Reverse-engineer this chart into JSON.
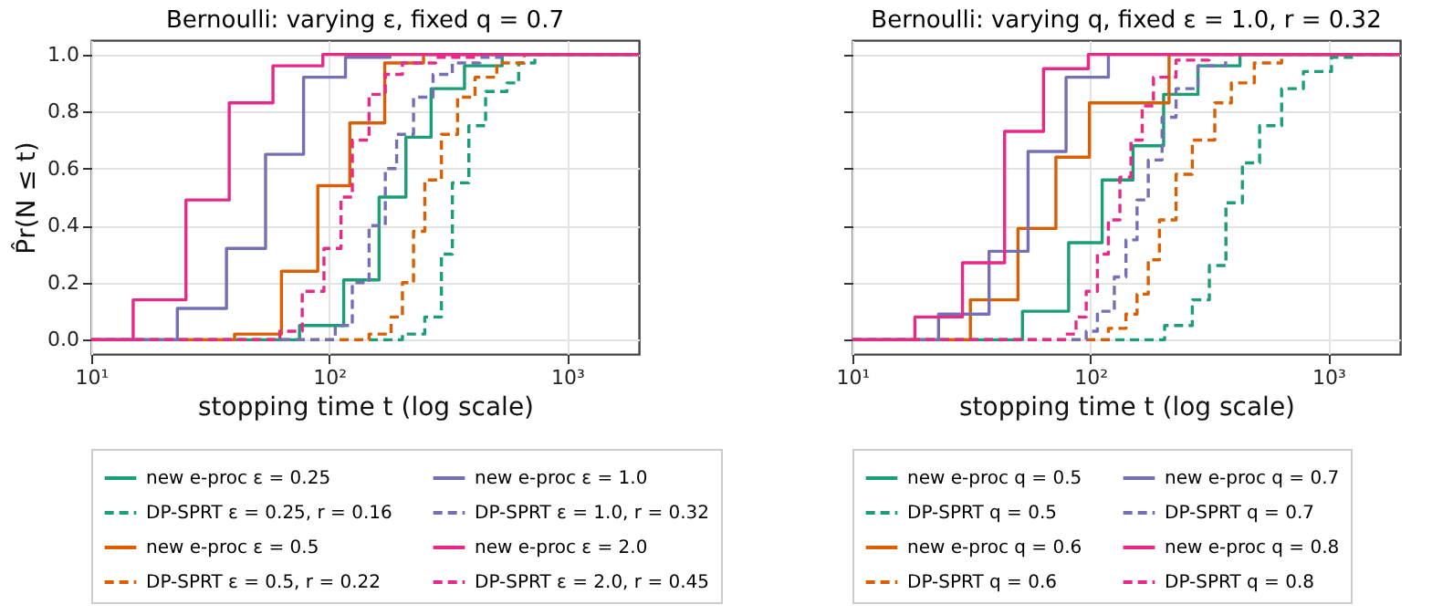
{
  "chart_data": [
    {
      "type": "step",
      "title": "Bernoulli: varying ε, fixed q = 0.7",
      "xlabel": "stopping time t (log scale)",
      "ylabel": "P̂r(N ≤ t)",
      "log": "x",
      "grid": true,
      "legend": "bottom",
      "xlim": [
        10,
        2000
      ],
      "ylim": [
        -0.05,
        1.05
      ],
      "xticks": [
        {
          "value": 10,
          "label": "10¹"
        },
        {
          "value": 100,
          "label": "10²"
        },
        {
          "value": 1000,
          "label": "10³"
        }
      ],
      "yticks": [
        {
          "value": 0,
          "label": "0.0"
        },
        {
          "value": 0.2,
          "label": "0.2"
        },
        {
          "value": 0.4,
          "label": "0.4"
        },
        {
          "value": 0.6,
          "label": "0.6"
        },
        {
          "value": 0.8,
          "label": "0.8"
        },
        {
          "value": 1,
          "label": "1.0"
        }
      ],
      "series": [
        {
          "name": "new e-proc ε = 0.25",
          "color": "#1b9e77",
          "line_style": "solid",
          "x": [
            10,
            75,
            115,
            162,
            210,
            268,
            370,
            533,
            2000
          ],
          "values": [
            0,
            0.05,
            0.21,
            0.5,
            0.71,
            0.88,
            0.96,
            1.0,
            1.0
          ]
        },
        {
          "name": "DP-SPRT ε = 0.25, r = 0.16",
          "color": "#1b9e77",
          "line_style": "dashed",
          "x": [
            10,
            160,
            203,
            252,
            296,
            329,
            386,
            454,
            558,
            625,
            731,
            2000
          ],
          "values": [
            0,
            0,
            0.02,
            0.08,
            0.3,
            0.55,
            0.75,
            0.87,
            0.9,
            0.97,
            1.0,
            1.0
          ]
        },
        {
          "name": "new e-proc ε = 0.5",
          "color": "#d95f02",
          "line_style": "solid",
          "x": [
            10,
            40,
            63,
            89.5,
            122,
            171,
            249,
            2000
          ],
          "values": [
            0,
            0.02,
            0.24,
            0.54,
            0.76,
            0.97,
            1.0,
            1.0
          ]
        },
        {
          "name": "DP-SPRT ε = 0.5, r = 0.22",
          "color": "#d95f02",
          "line_style": "dashed",
          "x": [
            10,
            119,
            147,
            182,
            203,
            226,
            252,
            296,
            346,
            410,
            506,
            660,
            2000
          ],
          "values": [
            0,
            0,
            0.02,
            0.08,
            0.2,
            0.38,
            0.56,
            0.72,
            0.85,
            0.92,
            0.97,
            1.0,
            1.0
          ]
        },
        {
          "name": "new e-proc ε = 1.0",
          "color": "#7570b3",
          "line_style": "solid",
          "x": [
            10,
            23,
            37,
            54,
            78,
            117,
            180,
            2000
          ],
          "values": [
            0,
            0.11,
            0.32,
            0.65,
            0.92,
            0.99,
            1.0,
            1.0
          ]
        },
        {
          "name": "DP-SPRT ε = 1.0, r = 0.32",
          "color": "#7570b3",
          "line_style": "dashed",
          "x": [
            10,
            86,
            106,
            125,
            147,
            172,
            192,
            226,
            273,
            329,
            430,
            533,
            2000
          ],
          "values": [
            0,
            0,
            0.05,
            0.2,
            0.4,
            0.6,
            0.72,
            0.85,
            0.93,
            0.97,
            0.99,
            1.0,
            1.0
          ]
        },
        {
          "name": "new e-proc ε = 2.0",
          "color": "#e7298a",
          "line_style": "solid",
          "x": [
            10,
            15,
            25,
            38,
            58,
            94,
            2000
          ],
          "values": [
            0,
            0.14,
            0.49,
            0.83,
            0.96,
            1.0,
            1.0
          ]
        },
        {
          "name": "DP-SPRT ε = 2.0, r = 0.45",
          "color": "#e7298a",
          "line_style": "dashed",
          "x": [
            10,
            53,
            62,
            77,
            95,
            112,
            125,
            147,
            172,
            203,
            280,
            410,
            2000
          ],
          "values": [
            0,
            0,
            0.03,
            0.17,
            0.32,
            0.5,
            0.7,
            0.86,
            0.93,
            0.97,
            0.99,
            1.0,
            1.0
          ]
        }
      ]
    },
    {
      "type": "step",
      "title": "Bernoulli: varying q, fixed ε = 1.0, r = 0.32",
      "xlabel": "stopping time t (log scale)",
      "log": "x",
      "grid": true,
      "legend": "bottom",
      "tick_labels": "x",
      "xlim": [
        10,
        2000
      ],
      "ylim": [
        -0.05,
        1.05
      ],
      "xticks": [
        {
          "value": 10,
          "label": "10¹"
        },
        {
          "value": 100,
          "label": "10²"
        },
        {
          "value": 1000,
          "label": "10³"
        }
      ],
      "yticks": [
        0,
        0.2,
        0.4,
        0.6,
        0.8,
        1
      ],
      "series": [
        {
          "name": "new e-proc q = 0.5",
          "color": "#1b9e77",
          "line_style": "solid",
          "x": [
            10,
            51.8,
            81,
            112,
            151,
            203,
            283,
            425,
            2000
          ],
          "values": [
            0,
            0.1,
            0.34,
            0.56,
            0.68,
            0.86,
            0.96,
            1.0,
            1.0
          ]
        },
        {
          "name": "DP-SPRT q = 0.5",
          "color": "#1b9e77",
          "line_style": "dashed",
          "x": [
            10,
            165,
            205,
            268,
            316,
            371,
            435,
            514,
            636,
            785,
            1030,
            1270,
            2000
          ],
          "values": [
            0,
            0,
            0.05,
            0.14,
            0.26,
            0.48,
            0.62,
            0.75,
            0.88,
            0.94,
            0.99,
            1.0,
            1.0
          ]
        },
        {
          "name": "new e-proc q = 0.6",
          "color": "#d95f02",
          "line_style": "solid",
          "x": [
            10,
            31.3,
            49.6,
            71.6,
            99,
            214,
            2000
          ],
          "values": [
            0,
            0.14,
            0.39,
            0.64,
            0.83,
            1.0,
            1.0
          ]
        },
        {
          "name": "DP-SPRT q = 0.6",
          "color": "#d95f02",
          "line_style": "dashed",
          "x": [
            10,
            107,
            119,
            141,
            157,
            175,
            195,
            229,
            268,
            333,
            391,
            488,
            636,
            2000
          ],
          "values": [
            0,
            0,
            0.04,
            0.09,
            0.16,
            0.28,
            0.42,
            0.58,
            0.7,
            0.83,
            0.9,
            0.97,
            1.0,
            1.0
          ]
        },
        {
          "name": "new e-proc q = 0.7",
          "color": "#7570b3",
          "line_style": "solid",
          "x": [
            10,
            23,
            37.5,
            54.7,
            79,
            119,
            2000
          ],
          "values": [
            0,
            0.09,
            0.31,
            0.66,
            0.92,
            1.0,
            1.0
          ]
        },
        {
          "name": "DP-SPRT q = 0.7",
          "color": "#7570b3",
          "line_style": "dashed",
          "x": [
            10,
            87,
            96,
            107,
            126,
            141,
            157,
            175,
            200,
            229,
            283,
            370,
            2000
          ],
          "values": [
            0,
            0,
            0.03,
            0.1,
            0.22,
            0.35,
            0.49,
            0.63,
            0.78,
            0.88,
            0.96,
            1.0,
            1.0
          ]
        },
        {
          "name": "new e-proc q = 0.8",
          "color": "#e7298a",
          "line_style": "solid",
          "x": [
            10,
            18.3,
            29,
            43.6,
            63.5,
            98,
            2000
          ],
          "values": [
            0,
            0.08,
            0.27,
            0.73,
            0.95,
            1.0,
            1.0
          ]
        },
        {
          "name": "DP-SPRT q = 0.8",
          "color": "#e7298a",
          "line_style": "dashed",
          "x": [
            10,
            70,
            78,
            87,
            96,
            107,
            119,
            133,
            148,
            165,
            184,
            229,
            315,
            2000
          ],
          "values": [
            0,
            0,
            0.02,
            0.08,
            0.17,
            0.3,
            0.42,
            0.57,
            0.7,
            0.82,
            0.92,
            0.98,
            1.0,
            1.0
          ]
        }
      ]
    }
  ]
}
